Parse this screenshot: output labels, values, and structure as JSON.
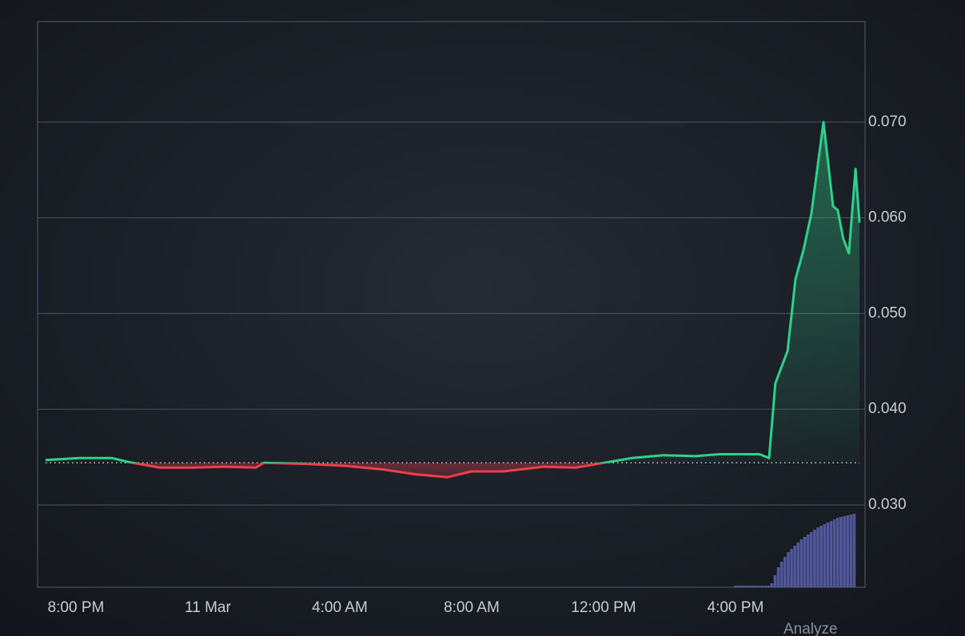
{
  "chart_data": {
    "type": "line",
    "x": [
      19.08,
      20.12,
      21.09,
      21.58,
      22.55,
      23.52,
      24.48,
      25.45,
      25.7,
      26.91,
      28.12,
      29.33,
      30.3,
      31.27,
      31.99,
      32.97,
      34.18,
      35.15,
      36.0,
      36.85,
      37.82,
      38.79,
      39.52,
      40.73,
      41.02,
      41.21,
      41.58,
      41.82,
      42.06,
      42.3,
      42.67,
      42.96,
      43.1,
      43.27,
      43.44,
      43.64,
      43.76
    ],
    "values": [
      0.0347,
      0.0349,
      0.0349,
      0.0345,
      0.0339,
      0.0339,
      0.034,
      0.0339,
      0.0344,
      0.0343,
      0.0341,
      0.0337,
      0.0332,
      0.0329,
      0.0335,
      0.0335,
      0.034,
      0.0339,
      0.0344,
      0.0349,
      0.0352,
      0.0351,
      0.0353,
      0.0353,
      0.0349,
      0.0427,
      0.0461,
      0.0536,
      0.0566,
      0.0604,
      0.07,
      0.0612,
      0.0608,
      0.0578,
      0.0563,
      0.0651,
      0.0595
    ],
    "baseline": 0.0344,
    "color_above": "#2fd18a",
    "color_below": "#ee3f4b",
    "xlim": [
      19.08,
      43.76
    ],
    "xticks": [
      {
        "value": 20,
        "label": "8:00 PM"
      },
      {
        "value": 24,
        "label": "11 Mar"
      },
      {
        "value": 28,
        "label": "4:00 AM"
      },
      {
        "value": 32,
        "label": "8:00 AM"
      },
      {
        "value": 36,
        "label": "12:00 PM"
      },
      {
        "value": 40,
        "label": "4:00 PM"
      }
    ],
    "ylim": [
      0.0214,
      0.0805
    ],
    "yticks": [
      {
        "value": 0.03,
        "label": "0.030"
      },
      {
        "value": 0.04,
        "label": "0.040"
      },
      {
        "value": 0.05,
        "label": "0.050"
      },
      {
        "value": 0.06,
        "label": "0.060"
      },
      {
        "value": 0.07,
        "label": "0.070"
      }
    ],
    "grid": true,
    "volume": {
      "x": [
        40.0,
        40.1,
        40.2,
        40.3,
        40.4,
        40.5,
        40.6,
        40.7,
        40.8,
        40.9,
        41.0,
        41.1,
        41.2,
        41.3,
        41.4,
        41.5,
        41.6,
        41.7,
        41.8,
        41.9,
        42.0,
        42.1,
        42.2,
        42.3,
        42.4,
        42.5,
        42.6,
        42.7,
        42.8,
        42.9,
        43.0,
        43.1,
        43.2,
        43.3,
        43.4,
        43.5,
        43.6
      ],
      "values": [
        2,
        2,
        2,
        2,
        2,
        2,
        2,
        2,
        2,
        2,
        2,
        5,
        15,
        25,
        32,
        38,
        44,
        48,
        52,
        56,
        60,
        63,
        66,
        69,
        72,
        75,
        77,
        79,
        81,
        83,
        85,
        87,
        88,
        89,
        90,
        91,
        92
      ],
      "ylim": [
        0,
        100
      ],
      "color": "#5a63b0"
    },
    "annotation": "Analyze"
  }
}
